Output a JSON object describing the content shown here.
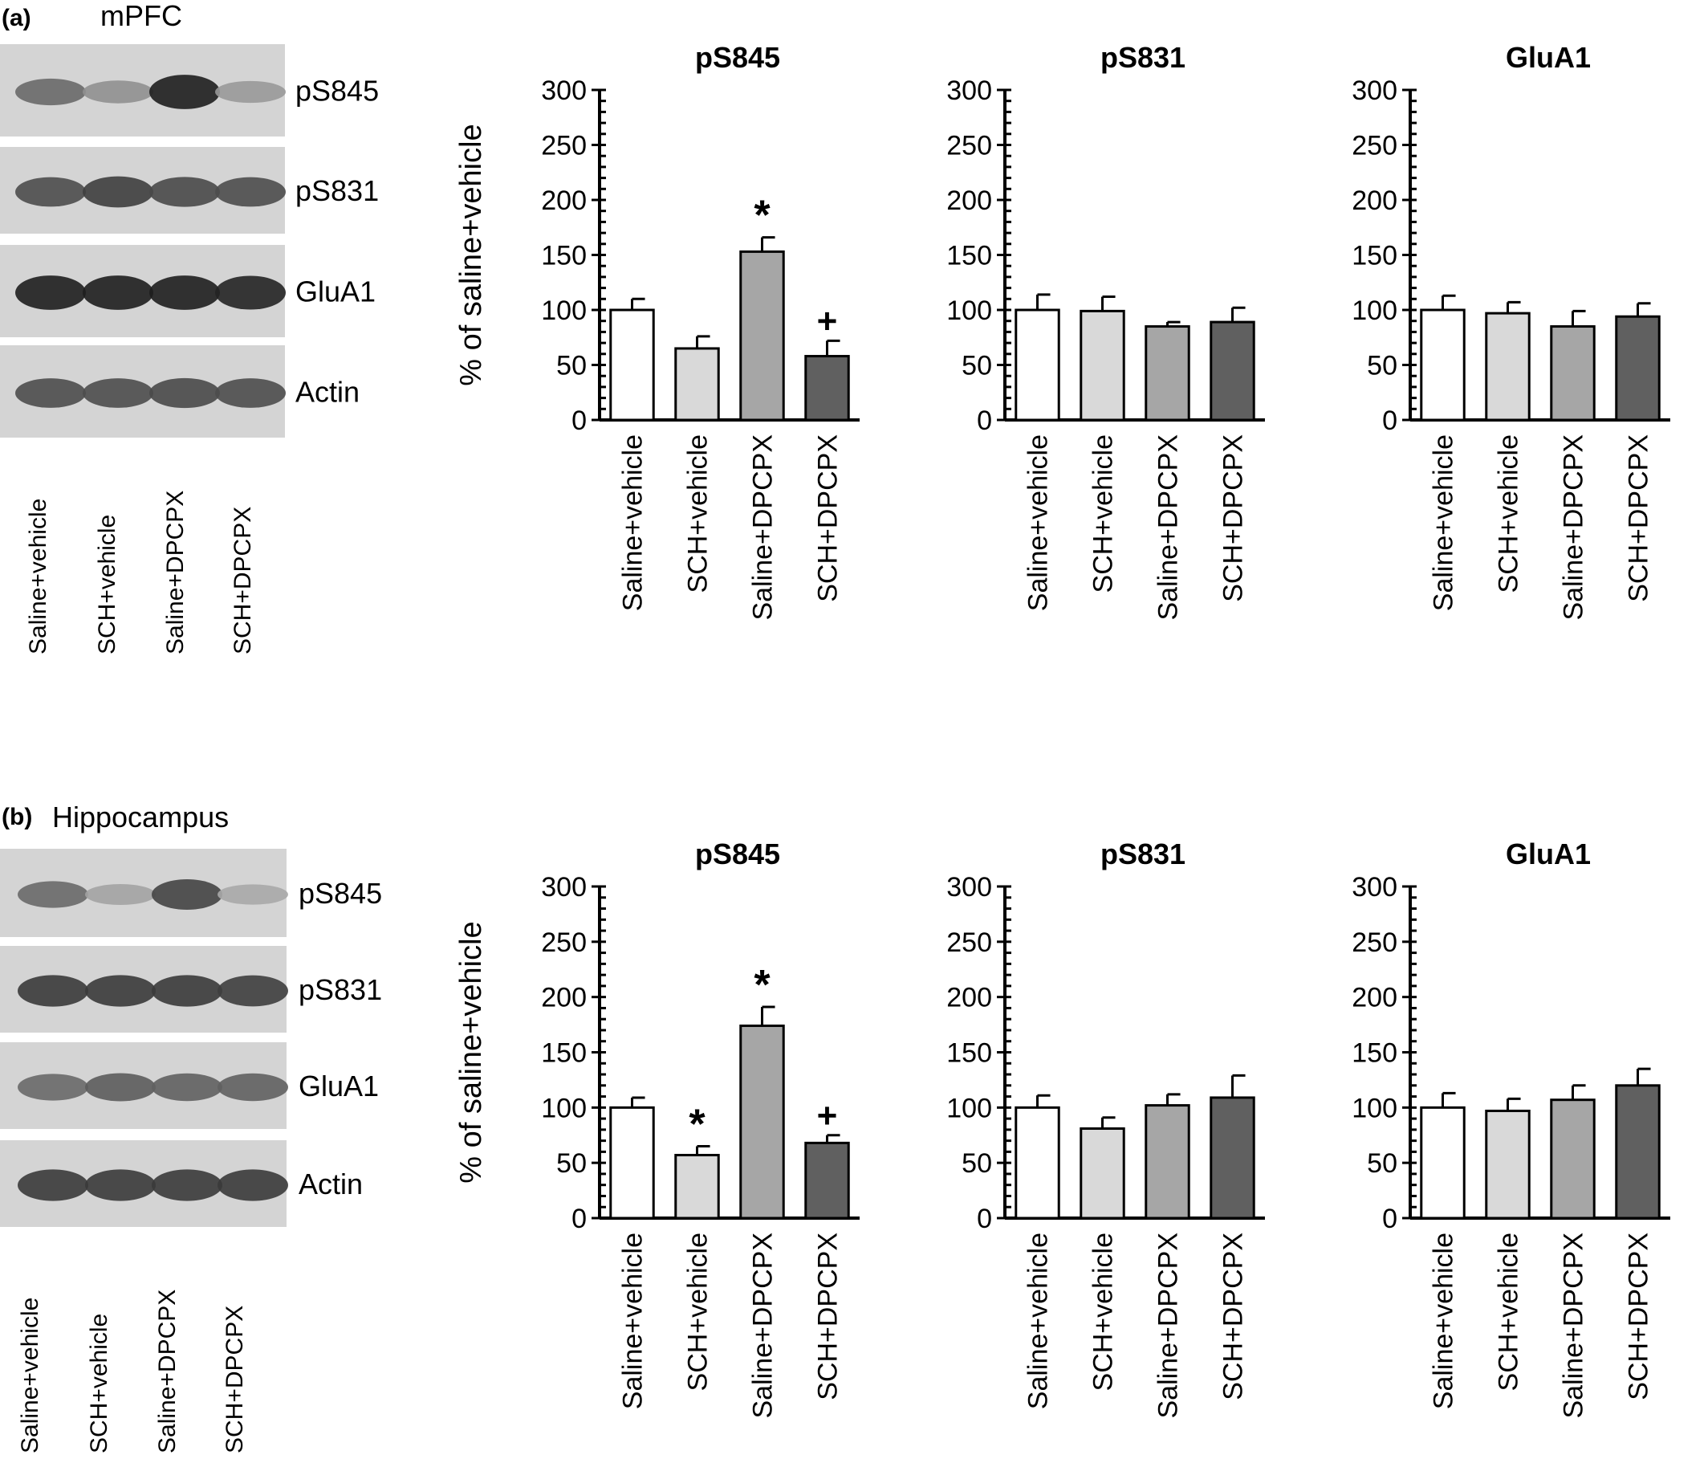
{
  "panels": [
    {
      "panel_label": "(a)",
      "region": "mPFC",
      "blot_labels": [
        "pS845",
        "pS831",
        "GluA1",
        "Actin"
      ],
      "lane_labels": [
        "Saline+vehicle",
        "SCH+vehicle",
        "Saline+DPCPX",
        "SCH+DPCPX"
      ],
      "blot_intensities": [
        [
          0.55,
          0.35,
          0.95,
          0.3
        ],
        [
          0.7,
          0.78,
          0.72,
          0.7
        ],
        [
          0.95,
          0.95,
          0.95,
          0.92
        ],
        [
          0.7,
          0.7,
          0.72,
          0.7
        ]
      ]
    },
    {
      "panel_label": "(b)",
      "region": "Hippocampus",
      "blot_labels": [
        "pS845",
        "pS831",
        "GluA1",
        "Actin"
      ],
      "lane_labels": [
        "Saline+vehicle",
        "SCH+vehicle",
        "Saline+DPCPX",
        "SCH+DPCPX"
      ],
      "blot_intensities": [
        [
          0.55,
          0.25,
          0.75,
          0.22
        ],
        [
          0.8,
          0.8,
          0.8,
          0.78
        ],
        [
          0.55,
          0.62,
          0.6,
          0.6
        ],
        [
          0.8,
          0.8,
          0.8,
          0.8
        ]
      ]
    }
  ],
  "chart_data": [
    {
      "type": "bar",
      "panel": "(a)",
      "title": "pS845",
      "ylabel": "% of saline+vehicle",
      "ylim": [
        0,
        300
      ],
      "yticks": [
        0,
        50,
        100,
        150,
        200,
        250,
        300
      ],
      "categories": [
        "Saline+vehicle",
        "SCH+vehicle",
        "Saline+DPCPX",
        "SCH+DPCPX"
      ],
      "values": [
        100,
        65,
        153,
        58
      ],
      "errors": [
        10,
        11,
        13,
        14
      ],
      "annotations": [
        "",
        "",
        "*",
        "+"
      ]
    },
    {
      "type": "bar",
      "panel": "(a)",
      "title": "pS831",
      "ylabel": "",
      "ylim": [
        0,
        300
      ],
      "yticks": [
        0,
        50,
        100,
        150,
        200,
        250,
        300
      ],
      "categories": [
        "Saline+vehicle",
        "SCH+vehicle",
        "Saline+DPCPX",
        "SCH+DPCPX"
      ],
      "values": [
        100,
        99,
        85,
        89
      ],
      "errors": [
        14,
        13,
        4,
        13
      ],
      "annotations": [
        "",
        "",
        "",
        ""
      ]
    },
    {
      "type": "bar",
      "panel": "(a)",
      "title": "GluA1",
      "ylabel": "",
      "ylim": [
        0,
        300
      ],
      "yticks": [
        0,
        50,
        100,
        150,
        200,
        250,
        300
      ],
      "categories": [
        "Saline+vehicle",
        "SCH+vehicle",
        "Saline+DPCPX",
        "SCH+DPCPX"
      ],
      "values": [
        100,
        97,
        85,
        94
      ],
      "errors": [
        13,
        10,
        14,
        12
      ],
      "annotations": [
        "",
        "",
        "",
        ""
      ]
    },
    {
      "type": "bar",
      "panel": "(b)",
      "title": "pS845",
      "ylabel": "% of saline+vehicle",
      "ylim": [
        0,
        300
      ],
      "yticks": [
        0,
        50,
        100,
        150,
        200,
        250,
        300
      ],
      "categories": [
        "Saline+vehicle",
        "SCH+vehicle",
        "Saline+DPCPX",
        "SCH+DPCPX"
      ],
      "values": [
        100,
        57,
        174,
        68
      ],
      "errors": [
        9,
        8,
        17,
        7
      ],
      "annotations": [
        "",
        "*",
        "*",
        "+"
      ]
    },
    {
      "type": "bar",
      "panel": "(b)",
      "title": "pS831",
      "ylabel": "",
      "ylim": [
        0,
        300
      ],
      "yticks": [
        0,
        50,
        100,
        150,
        200,
        250,
        300
      ],
      "categories": [
        "Saline+vehicle",
        "SCH+vehicle",
        "Saline+DPCPX",
        "SCH+DPCPX"
      ],
      "values": [
        100,
        81,
        102,
        109
      ],
      "errors": [
        11,
        10,
        10,
        20
      ],
      "annotations": [
        "",
        "",
        "",
        ""
      ]
    },
    {
      "type": "bar",
      "panel": "(b)",
      "title": "GluA1",
      "ylabel": "",
      "ylim": [
        0,
        300
      ],
      "yticks": [
        0,
        50,
        100,
        150,
        200,
        250,
        300
      ],
      "categories": [
        "Saline+vehicle",
        "SCH+vehicle",
        "Saline+DPCPX",
        "SCH+DPCPX"
      ],
      "values": [
        100,
        97,
        107,
        120
      ],
      "errors": [
        13,
        11,
        13,
        15
      ],
      "annotations": [
        "",
        "",
        "",
        ""
      ]
    }
  ],
  "colors": {
    "bars": [
      "#ffffff",
      "#d9d9d9",
      "#a6a6a6",
      "#606060"
    ],
    "stroke": "#000000",
    "blot_background": "#d4d4d4",
    "band_dark": "#1c1c1c"
  }
}
